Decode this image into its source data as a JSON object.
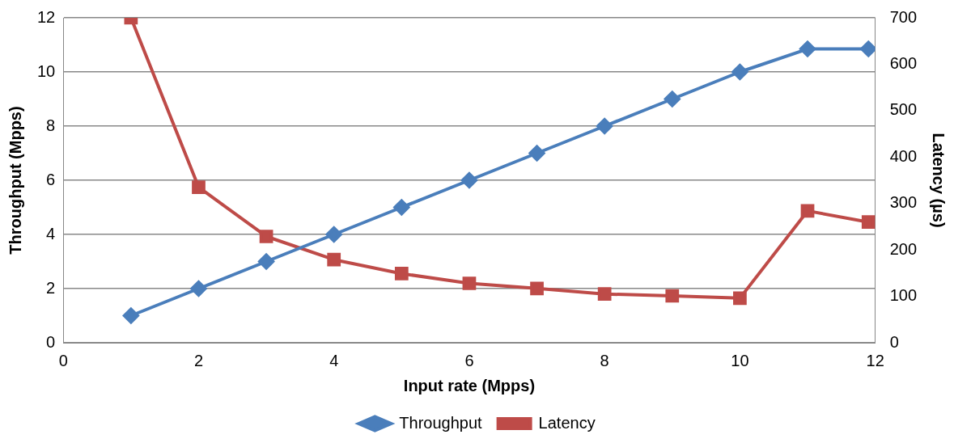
{
  "chart_data": {
    "type": "line",
    "xlabel": "Input rate (Mpps)",
    "ylabel": "Throughput (Mpps)",
    "y2label": "Latency (µs)",
    "x": [
      1,
      2,
      3,
      4,
      5,
      6,
      7,
      8,
      9,
      10,
      11,
      11.9
    ],
    "series": [
      {
        "name": "Throughput",
        "color": "#4a7ebb",
        "marker": "diamond",
        "values": [
          1,
          2,
          3,
          4,
          5,
          6,
          7,
          8,
          9,
          10,
          10.85,
          10.85
        ]
      },
      {
        "name": "Latency",
        "color": "#be4b48",
        "marker": "square",
        "axis": "y2",
        "values": [
          700,
          335,
          229,
          179,
          149,
          128,
          117,
          105,
          101,
          96,
          284,
          260
        ]
      }
    ],
    "xlim": [
      0,
      12
    ],
    "xticks": [
      0,
      2,
      4,
      6,
      8,
      10,
      12
    ],
    "ylim": [
      0,
      12
    ],
    "yticks": [
      0,
      2,
      4,
      6,
      8,
      10,
      12
    ],
    "y2lim": [
      0,
      700
    ],
    "y2ticks": [
      0,
      100,
      200,
      300,
      400,
      500,
      600,
      700
    ],
    "grid": "y",
    "legend": "bottom"
  }
}
